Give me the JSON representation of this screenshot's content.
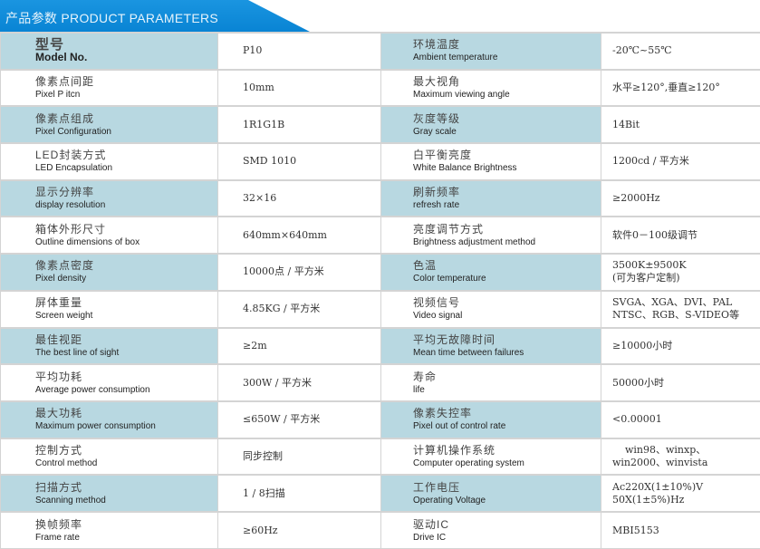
{
  "header": {
    "title": "产品参数 PRODUCT PARAMETERS"
  },
  "colors": {
    "header_blue": "#0984d4",
    "label_bg": "#b8d8e1"
  },
  "rows": [
    {
      "l_cn": "型号",
      "l_en": "Model No.",
      "l_val": "P10",
      "r_cn": "环境温度",
      "r_en": "Ambient temperature",
      "r_val": "-20℃~55℃"
    },
    {
      "l_cn": "像素点间距",
      "l_en": "Pixel P itcn",
      "l_val": "10mm",
      "r_cn": "最大视角",
      "r_en": "Maximum viewing angle",
      "r_val": "水平≥120°,垂直≥120°"
    },
    {
      "l_cn": "像素点组成",
      "l_en": "Pixel  Configuration",
      "l_val": "1R1G1B",
      "r_cn": "灰度等级",
      "r_en": "Gray scale",
      "r_val": "14Bit"
    },
    {
      "l_cn": "LED封装方式",
      "l_en": "LED  Encapsulation",
      "l_val": "SMD 1010",
      "r_cn": "白平衡亮度",
      "r_en": "White Balance Brightness",
      "r_val": "1200cd / 平方米"
    },
    {
      "l_cn": "显示分辨率",
      "l_en": "display resolution",
      "l_val": "32×16",
      "r_cn": "刷新频率",
      "r_en": "refresh rate",
      "r_val": "≥2000Hz"
    },
    {
      "l_cn": "箱体外形尺寸",
      "l_en": "Outline dimensions of box",
      "l_val": "640mm×640mm",
      "r_cn": "亮度调节方式",
      "r_en": "Brightness adjustment method",
      "r_val": "软件0－100级调节"
    },
    {
      "l_cn": "像素点密度",
      "l_en": "Pixel density",
      "l_val": "10000点 / 平方米",
      "r_cn": "色温",
      "r_en": "Color temperature",
      "r_val": "3500K±9500K",
      "r_val2": "(可为客户定制)"
    },
    {
      "l_cn": "屏体重量",
      "l_en": "Screen weight",
      "l_val": "4.85KG / 平方米",
      "r_cn": "视频信号",
      "r_en": "Video signal",
      "r_val": "SVGA、XGA、DVI、PAL",
      "r_val2": "NTSC、RGB、S-VIDEO等"
    },
    {
      "l_cn": "最佳视距",
      "l_en": "The best line of sight",
      "l_val": "≥2m",
      "r_cn": "平均无故障时间",
      "r_en": "Mean time between failures",
      "r_val": "≥10000小时"
    },
    {
      "l_cn": "平均功耗",
      "l_en": "Average power consumption",
      "l_val": "300W / 平方米",
      "r_cn": "寿命",
      "r_en": "life",
      "r_val": "50000小时"
    },
    {
      "l_cn": "最大功耗",
      "l_en": "Maximum power consumption",
      "l_val": "≤650W / 平方米",
      "r_cn": "像素失控率",
      "r_en": "Pixel out of control rate",
      "r_val": "<0.00001"
    },
    {
      "l_cn": "控制方式",
      "l_en": "Control method",
      "l_val": "同步控制",
      "r_cn": "计算机操作系统",
      "r_en": "Computer operating system",
      "r_val": "    win98、winxp、",
      "r_val2": "win2000、winvista"
    },
    {
      "l_cn": "扫描方式",
      "l_en": "Scanning method",
      "l_val": "1 / 8扫描",
      "r_cn": "工作电压",
      "r_en": "Operating Voltage",
      "r_val": "Ac220X(1±10%)V",
      "r_val2": "50X(1±5%)Hz"
    },
    {
      "l_cn": "换帧频率",
      "l_en": "Frame rate",
      "l_val": "≥60Hz",
      "r_cn": "驱动IC",
      "r_en": "Drive IC",
      "r_val": "MBI5153"
    }
  ]
}
